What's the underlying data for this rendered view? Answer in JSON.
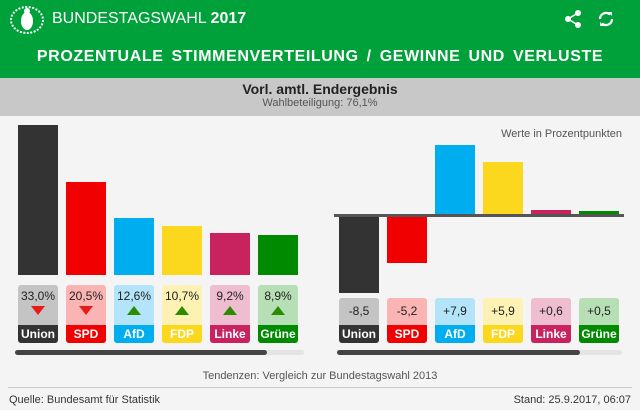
{
  "header": {
    "brand": "BUNDESTAGSWAHL",
    "year": "2017",
    "title": "PROZENTUALE STIMMENVERTEILUNG / GEWINNE UND VERLUSTE",
    "icons": [
      "eagle-logo",
      "share-icon",
      "refresh-icon"
    ]
  },
  "status": {
    "title": "Vorl. amtl. Endergebnis",
    "turnout": "Wahlbeteiligung: 76,1%"
  },
  "parties": [
    {
      "name": "Union",
      "share": 33.0,
      "share_label": "33,0%",
      "trend": "down",
      "change": -8.5,
      "change_label": "-8,5",
      "color": "#333333",
      "light": "#c4c4c4"
    },
    {
      "name": "SPD",
      "share": 20.5,
      "share_label": "20,5%",
      "trend": "down",
      "change": -5.2,
      "change_label": "-5,2",
      "color": "#f00000",
      "light": "#fbb4b4"
    },
    {
      "name": "AfD",
      "share": 12.6,
      "share_label": "12,6%",
      "trend": "up",
      "change": 7.9,
      "change_label": "+7,9",
      "color": "#00aeef",
      "light": "#b3e4f9"
    },
    {
      "name": "FDP",
      "share": 10.7,
      "share_label": "10,7%",
      "trend": "up",
      "change": 5.9,
      "change_label": "+5,9",
      "color": "#fbd81e",
      "light": "#fdf2b4"
    },
    {
      "name": "Linke",
      "share": 9.2,
      "share_label": "9,2%",
      "trend": "up",
      "change": 0.6,
      "change_label": "+0,6",
      "color": "#c8235f",
      "light": "#eebdd0"
    },
    {
      "name": "Grüne",
      "share": 8.9,
      "share_label": "8,9%",
      "trend": "up",
      "change": 0.5,
      "change_label": "+0,5",
      "color": "#008a00",
      "light": "#b6dfb6"
    }
  ],
  "right_note": "Werte in Prozentpunkten",
  "compare_note": "Tendenzen: Vergleich zur Bundestagswahl 2013",
  "footer": {
    "source": "Quelle: Bundesamt für Statistik",
    "date": "Stand: 25.9.2017, 06:07"
  }
}
